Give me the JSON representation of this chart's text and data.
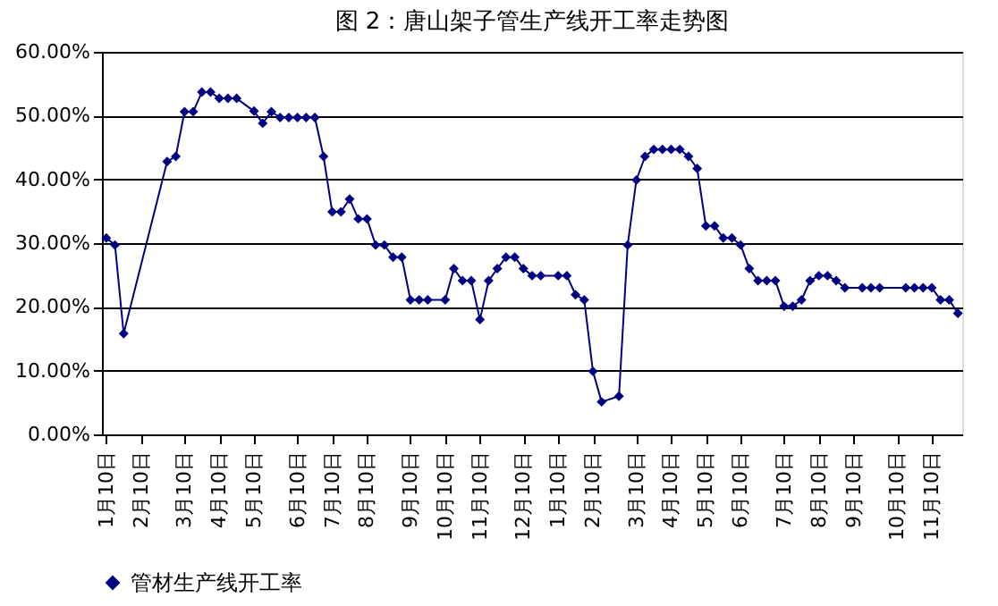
{
  "chart_data": {
    "type": "line",
    "title": "图 2：唐山架子管生产线开工率走势图",
    "categories": [
      "1月10日",
      null,
      null,
      null,
      "2月10日",
      null,
      null,
      null,
      null,
      "3月10日",
      null,
      null,
      null,
      "4月10日",
      null,
      null,
      null,
      "5月10日",
      null,
      null,
      null,
      null,
      "6月10日",
      null,
      null,
      null,
      "7月10日",
      null,
      null,
      null,
      "8月10日",
      null,
      null,
      null,
      null,
      "9月10日",
      null,
      null,
      null,
      "10月10日",
      null,
      null,
      null,
      "11月10日",
      null,
      null,
      null,
      null,
      "12月10日",
      null,
      null,
      null,
      "1月10日",
      null,
      null,
      null,
      "2月10日",
      null,
      null,
      null,
      null,
      "3月10日",
      null,
      null,
      null,
      "4月10日",
      null,
      null,
      null,
      "5月10日",
      null,
      null,
      null,
      "6月10日",
      null,
      null,
      null,
      null,
      "7月10日",
      null,
      null,
      null,
      "8月10日",
      null,
      null,
      null,
      "9月10日",
      null,
      null,
      null,
      null,
      "10月10日",
      null,
      null,
      null,
      "11月10日",
      null,
      null,
      null
    ],
    "ylim": [
      0,
      60
    ],
    "yticks": [
      {
        "value": 0,
        "label": "0.00%"
      },
      {
        "value": 10,
        "label": "10.00%"
      },
      {
        "value": 20,
        "label": "20.00%"
      },
      {
        "value": 30,
        "label": "30.00%"
      },
      {
        "value": 40,
        "label": "40.00%"
      },
      {
        "value": 50,
        "label": "50.00%"
      },
      {
        "value": 60,
        "label": "60.00%"
      }
    ],
    "grid": "y",
    "legend": "bottom",
    "marker": "diamond",
    "line_style": "solid",
    "series": [
      {
        "name": "管材生产线开工率",
        "color": "#000080",
        "values": [
          30.8,
          29.7,
          15.8,
          null,
          null,
          null,
          null,
          42.8,
          43.6,
          50.6,
          50.6,
          53.7,
          53.7,
          52.7,
          52.7,
          52.7,
          null,
          50.7,
          48.8,
          50.6,
          49.7,
          49.7,
          49.7,
          49.7,
          49.7,
          43.6,
          34.9,
          34.9,
          36.9,
          33.8,
          33.8,
          29.7,
          29.7,
          27.8,
          27.8,
          21.1,
          21.1,
          21.1,
          null,
          21.1,
          26.0,
          24.1,
          24.1,
          18.0,
          24.1,
          26.0,
          27.8,
          27.8,
          26.0,
          24.9,
          24.9,
          null,
          24.9,
          24.9,
          21.9,
          21.1,
          9.9,
          5.1,
          null,
          6.0,
          29.7,
          39.9,
          43.6,
          44.7,
          44.7,
          44.7,
          44.7,
          43.6,
          41.7,
          32.7,
          32.7,
          30.8,
          30.8,
          29.7,
          26.0,
          24.1,
          24.1,
          24.1,
          20.1,
          20.1,
          21.1,
          24.1,
          24.9,
          24.9,
          24.1,
          23.0,
          null,
          23.0,
          23.0,
          23.0,
          null,
          null,
          23.0,
          23.0,
          23.0,
          23.0,
          21.1,
          21.1,
          19.0
        ]
      }
    ]
  }
}
